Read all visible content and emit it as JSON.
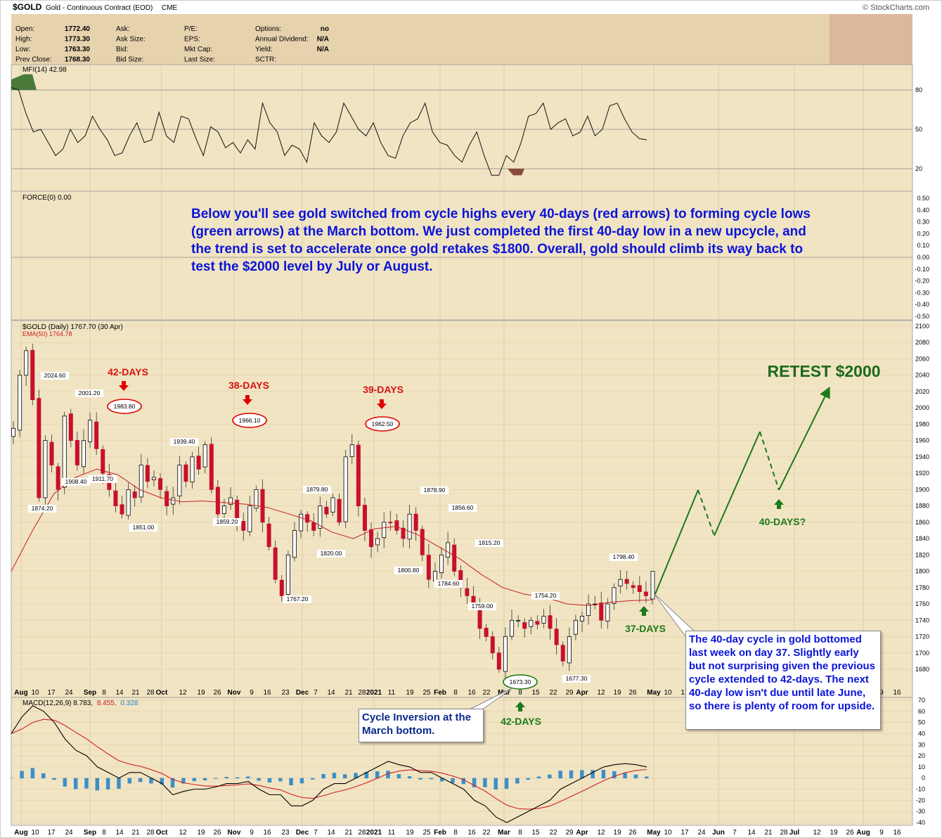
{
  "header": {
    "symbol": "$GOLD",
    "description": "Gold - Continuous Contract (EOD)",
    "exchange": "CME",
    "brand": "© StockCharts.com",
    "quote": [
      {
        "label": "Open:",
        "value": "1772.40"
      },
      {
        "label": "High:",
        "value": "1773.30"
      },
      {
        "label": "Low:",
        "value": "1763.30"
      },
      {
        "label": "Prev Close:",
        "value": "1768.30"
      }
    ],
    "quote2": [
      {
        "label": "Ask:",
        "value": ""
      },
      {
        "label": "Ask Size:",
        "value": ""
      },
      {
        "label": "Bid:",
        "value": ""
      },
      {
        "label": "Bid Size:",
        "value": ""
      }
    ],
    "quote3": [
      {
        "label": "P/E:",
        "value": ""
      },
      {
        "label": "EPS:",
        "value": ""
      },
      {
        "label": "Mkt Cap:",
        "value": ""
      },
      {
        "label": "Last Size:",
        "value": ""
      }
    ],
    "quote4": [
      {
        "label": "Options:",
        "value": "no"
      },
      {
        "label": "Annual Dividend:",
        "value": "N/A"
      },
      {
        "label": "Yield:",
        "value": "N/A"
      },
      {
        "label": "SCTR:",
        "value": ""
      }
    ]
  },
  "panels": {
    "mfi": {
      "label": "MFI(14) 42.98",
      "ticks": [
        80,
        50,
        20
      ]
    },
    "force": {
      "label": "FORCE(0) 0.00",
      "ticks": [
        "0.50",
        "0.40",
        "0.30",
        "0.20",
        "0.10",
        "0.00",
        "-0.10",
        "-0.20",
        "-0.30",
        "-0.40",
        "-0.50"
      ]
    },
    "price": {
      "label": "$GOLD (Daily) 1767.70 (30 Apr)",
      "ema_label": "EMA(50) 1764.78"
    },
    "macd": {
      "label_a": "MACD(12,26,9) 8.783,",
      "label_b": "8.455,",
      "label_c": "0.328",
      "ticks": [
        70,
        60,
        50,
        40,
        30,
        20,
        10,
        0,
        -10,
        -20,
        -30,
        -40
      ]
    }
  },
  "annotations": {
    "main_note": "Below you'll see gold switched from cycle highs every 40-days (red arrows) to forming cycle lows (green arrows) at the March bottom. We just completed the first 40-day low in a new upcycle, and the trend is set to accelerate once gold retakes $1800. Overall, gold should climb its way back to test the $2000 level by July or August.",
    "cycle_highs": [
      {
        "label": "42-DAYS",
        "price_label": "1983.80"
      },
      {
        "label": "38-DAYS",
        "price_label": "1966.10"
      },
      {
        "label": "39-DAYS",
        "price_label": "1962.50"
      }
    ],
    "cycle_lows": [
      {
        "label": "42-DAYS",
        "price_label": "1673.30"
      },
      {
        "label": "37-DAYS"
      },
      {
        "label": "40-DAYS?"
      }
    ],
    "retest": "RETEST $2000",
    "callout_left": "Cycle Inversion at the March bottom.",
    "callout_right": "The 40-day cycle in gold bottomed last week on day 37. Slightly early but not surprising given the previous cycle extended to 42-days. The next 40-day low isn't due until late June, so there is plenty of room for upside."
  },
  "chart_data": {
    "type": "candlestick",
    "title": "$GOLD (Daily)",
    "ylim": [
      1660,
      2100
    ],
    "y_ticks": [
      2100,
      2080,
      2060,
      2040,
      2020,
      2000,
      1980,
      1960,
      1940,
      1920,
      1900,
      1880,
      1860,
      1840,
      1820,
      1800,
      1780,
      1760,
      1740,
      1720,
      1700,
      1680
    ],
    "x_ticks": [
      "Aug",
      "10",
      "17",
      "24",
      "Sep",
      "8",
      "14",
      "21",
      "28",
      "Oct",
      "12",
      "19",
      "26",
      "Nov",
      "9",
      "16",
      "23",
      "Dec",
      "7",
      "14",
      "21",
      "28",
      "2021",
      "11",
      "19",
      "25",
      "Feb",
      "8",
      "16",
      "22",
      "Mar",
      "8",
      "15",
      "22",
      "29",
      "Apr",
      "12",
      "19",
      "26",
      "May",
      "10",
      "17",
      "24",
      "Jun",
      "7",
      "14",
      "21",
      "28",
      "Jul",
      "12",
      "19",
      "26",
      "Aug",
      "9",
      "16"
    ],
    "price_labels": [
      {
        "label": "2024.60",
        "value": 2024.6
      },
      {
        "label": "2001.20",
        "value": 2001.2
      },
      {
        "label": "1983.80",
        "value": 1983.8
      },
      {
        "label": "1939.40",
        "value": 1939.4
      },
      {
        "label": "1966.10",
        "value": 1966.1
      },
      {
        "label": "1962.50",
        "value": 1962.5
      },
      {
        "label": "1908.40",
        "value": 1908.4
      },
      {
        "label": "1911.70",
        "value": 1911.7
      },
      {
        "label": "1874.20",
        "value": 1874.2
      },
      {
        "label": "1851.00",
        "value": 1851.0
      },
      {
        "label": "1859.20",
        "value": 1859.2
      },
      {
        "label": "1879.80",
        "value": 1879.8
      },
      {
        "label": "1820.00",
        "value": 1820.0
      },
      {
        "label": "1767.20",
        "value": 1767.2
      },
      {
        "label": "1878.90",
        "value": 1878.9
      },
      {
        "label": "1856.60",
        "value": 1856.6
      },
      {
        "label": "1800.80",
        "value": 1800.8
      },
      {
        "label": "1815.20",
        "value": 1815.2
      },
      {
        "label": "1784.60",
        "value": 1784.6
      },
      {
        "label": "1759.00",
        "value": 1759.0
      },
      {
        "label": "1754.20",
        "value": 1754.2
      },
      {
        "label": "1673.30",
        "value": 1673.3
      },
      {
        "label": "1677.30",
        "value": 1677.3
      },
      {
        "label": "1798.40",
        "value": 1798.4
      }
    ],
    "close_path": [
      1975,
      2040,
      2070,
      2010,
      1890,
      1960,
      1930,
      1900,
      1990,
      1960,
      1930,
      1960,
      1985,
      1950,
      1920,
      1900,
      1880,
      1870,
      1900,
      1890,
      1930,
      1910,
      1915,
      1900,
      1880,
      1890,
      1930,
      1910,
      1940,
      1925,
      1955,
      1900,
      1870,
      1880,
      1890,
      1860,
      1850,
      1880,
      1900,
      1860,
      1830,
      1790,
      1770,
      1820,
      1850,
      1870,
      1860,
      1850,
      1880,
      1870,
      1890,
      1860,
      1940,
      1955,
      1880,
      1850,
      1830,
      1840,
      1860,
      1860,
      1850,
      1840,
      1870,
      1850,
      1820,
      1790,
      1800,
      1820,
      1835,
      1800,
      1780,
      1770,
      1760,
      1730,
      1720,
      1700,
      1680,
      1720,
      1740,
      1740,
      1730,
      1740,
      1735,
      1745,
      1730,
      1710,
      1690,
      1720,
      1740,
      1745,
      1760,
      1760,
      1740,
      1760,
      1780,
      1790,
      1785,
      1780,
      1775,
      1770,
      1767
    ],
    "ema50": [
      1800,
      1850,
      1895,
      1915,
      1925,
      1918,
      1900,
      1890,
      1885,
      1886,
      1884,
      1882,
      1878,
      1870,
      1862,
      1848,
      1840,
      1852,
      1855,
      1845,
      1830,
      1815,
      1796,
      1780,
      1772,
      1768,
      1760,
      1758,
      1762,
      1764,
      1765
    ],
    "projection": [
      {
        "x": "late Apr",
        "y": 1765
      },
      {
        "x": "mid May",
        "y": 1887
      },
      {
        "x": "late May",
        "y": 1833
      },
      {
        "x": "late Jun",
        "y": 1960
      },
      {
        "x": "early Jul",
        "y": 1887
      },
      {
        "x": "mid Jul",
        "y": 2017
      }
    ],
    "mfi": {
      "ylim": [
        0,
        100
      ],
      "last": 42.98
    },
    "macd": {
      "ylim": [
        -40,
        70
      ],
      "macd": 8.783,
      "signal": 8.455,
      "hist": 0.328
    }
  }
}
